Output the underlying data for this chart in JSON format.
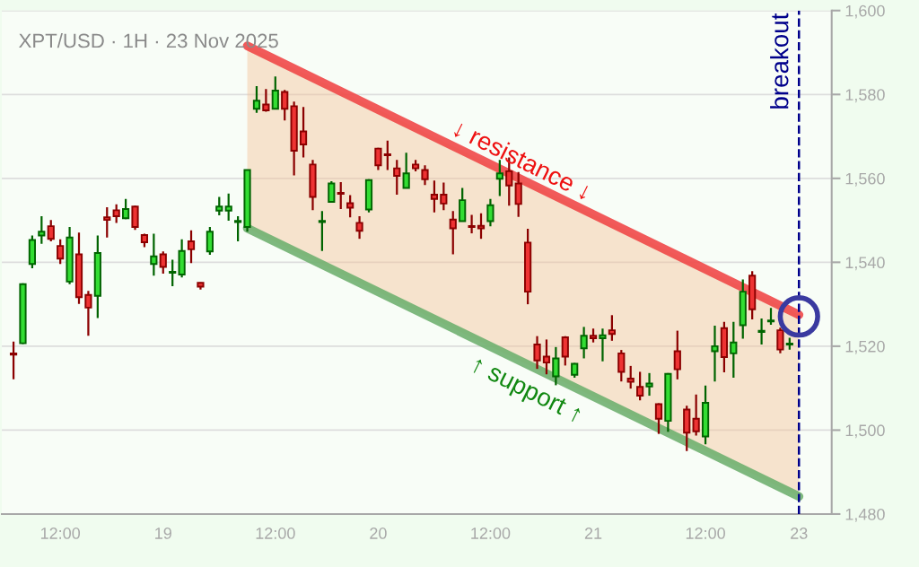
{
  "chart_data": {
    "type": "candlestick",
    "title": "XPT/USD · 1H · 23 Nov 2025",
    "categories": [
      null,
      null,
      null,
      null,
      null,
      "12:00",
      null,
      null,
      null,
      null,
      null,
      null,
      null,
      null,
      null,
      null,
      "19",
      null,
      null,
      null,
      null,
      null,
      null,
      null,
      null,
      null,
      null,
      null,
      "12:00",
      null,
      null,
      null,
      null,
      null,
      null,
      null,
      null,
      null,
      null,
      "20",
      null,
      null,
      null,
      null,
      null,
      null,
      null,
      null,
      null,
      null,
      null,
      "12:00",
      null,
      null,
      null,
      null,
      null,
      null,
      null,
      null,
      null,
      null,
      "21",
      null,
      null,
      null,
      null,
      null,
      null,
      null,
      null,
      null,
      null,
      null,
      "12:00",
      null,
      null,
      null,
      null,
      null,
      null,
      null,
      null,
      null,
      "23"
    ],
    "ohlc": [
      [
        1518.3,
        1521.1,
        1512.1,
        1518.0
      ],
      [
        1520.7,
        1535.0,
        1520.5,
        1534.8
      ],
      [
        1539.6,
        1546.4,
        1538.6,
        1545.3
      ],
      [
        1546.4,
        1551.0,
        1544.4,
        1547.3
      ],
      [
        1548.6,
        1550.1,
        1545.0,
        1545.6
      ],
      [
        1543.9,
        1545.5,
        1539.6,
        1540.9
      ],
      [
        1535.4,
        1548.4,
        1534.8,
        1545.9
      ],
      [
        1541.9,
        1547.1,
        1530.1,
        1531.7
      ],
      [
        1532.2,
        1533.2,
        1522.5,
        1529.2
      ],
      [
        1532.0,
        1546.4,
        1526.7,
        1542.2
      ],
      [
        1550.7,
        1553.1,
        1545.9,
        1550.1
      ],
      [
        1552.4,
        1553.8,
        1549.4,
        1551.0
      ],
      [
        1550.5,
        1555.1,
        1550.3,
        1552.7
      ],
      [
        1553.3,
        1553.5,
        1547.7,
        1548.4
      ],
      [
        1546.5,
        1546.8,
        1543.6,
        1544.8
      ],
      [
        1539.6,
        1546.8,
        1536.8,
        1541.4
      ],
      [
        1541.9,
        1542.6,
        1537.3,
        1538.9
      ],
      [
        1537.5,
        1540.6,
        1534.3,
        1537.6
      ],
      [
        1537.1,
        1545.5,
        1536.4,
        1542.7
      ],
      [
        1545.0,
        1547.6,
        1539.8,
        1543.1
      ],
      [
        1535.1,
        1535.2,
        1533.5,
        1534.2
      ],
      [
        1542.6,
        1548.4,
        1541.8,
        1547.3
      ],
      [
        1552.3,
        1555.6,
        1551.2,
        1553.3
      ],
      [
        1552.3,
        1556.4,
        1549.9,
        1553.3
      ],
      [
        1549.6,
        1551.0,
        1545.0,
        1549.7
      ],
      [
        1548.4,
        1562.0,
        1547.3,
        1562.0
      ],
      [
        1576.6,
        1582.0,
        1575.6,
        1578.5
      ],
      [
        1577.6,
        1581.3,
        1575.9,
        1576.2
      ],
      [
        1576.6,
        1584.3,
        1576.5,
        1580.9
      ],
      [
        1580.6,
        1581.1,
        1573.8,
        1576.6
      ],
      [
        1577.2,
        1578.3,
        1560.7,
        1566.6
      ],
      [
        1571.2,
        1577.0,
        1565.0,
        1568.1
      ],
      [
        1563.3,
        1564.4,
        1552.4,
        1555.6
      ],
      [
        1549.6,
        1552.2,
        1542.7,
        1549.8
      ],
      [
        1554.4,
        1559.3,
        1554.3,
        1558.8
      ],
      [
        1556.5,
        1559.1,
        1552.7,
        1556.3
      ],
      [
        1554.1,
        1556.0,
        1550.7,
        1553.0
      ],
      [
        1549.4,
        1551.0,
        1545.6,
        1547.5
      ],
      [
        1552.6,
        1559.8,
        1551.9,
        1559.6
      ],
      [
        1567.1,
        1567.3,
        1562.0,
        1563.1
      ],
      [
        1565.6,
        1569.0,
        1562.0,
        1565.5
      ],
      [
        1562.4,
        1564.4,
        1556.1,
        1560.6
      ],
      [
        1557.7,
        1566.1,
        1557.6,
        1561.2
      ],
      [
        1563.3,
        1564.4,
        1561.7,
        1562.4
      ],
      [
        1562.0,
        1563.1,
        1558.4,
        1559.8
      ],
      [
        1556.1,
        1559.5,
        1551.9,
        1555.1
      ],
      [
        1556.1,
        1559.0,
        1552.4,
        1554.0
      ],
      [
        1550.2,
        1552.2,
        1541.9,
        1548.1
      ],
      [
        1549.8,
        1557.7,
        1549.7,
        1554.8
      ],
      [
        1548.5,
        1551.3,
        1546.9,
        1548.4
      ],
      [
        1548.7,
        1551.7,
        1545.6,
        1548.1
      ],
      [
        1549.8,
        1555.1,
        1548.6,
        1553.6
      ],
      [
        1559.9,
        1564.4,
        1555.8,
        1561.2
      ],
      [
        1561.7,
        1565.0,
        1553.5,
        1558.3
      ],
      [
        1558.8,
        1561.5,
        1550.8,
        1553.9
      ],
      [
        1544.7,
        1548.0,
        1530.0,
        1533.0
      ],
      [
        1520.4,
        1522.4,
        1514.6,
        1516.6
      ],
      [
        1517.5,
        1521.6,
        1513.3,
        1516.1
      ],
      [
        1512.8,
        1519.8,
        1510.7,
        1517.1
      ],
      [
        1522.1,
        1522.4,
        1515.4,
        1517.5
      ],
      [
        1513.2,
        1516.0,
        1512.5,
        1515.8
      ],
      [
        1519.5,
        1524.6,
        1517.1,
        1522.5
      ],
      [
        1522.5,
        1524.2,
        1520.9,
        1521.9
      ],
      [
        1521.9,
        1524.2,
        1516.4,
        1522.6
      ],
      [
        1523.8,
        1527.4,
        1521.3,
        1522.9
      ],
      [
        1518.3,
        1519.1,
        1511.6,
        1513.9
      ],
      [
        1512.3,
        1515.3,
        1509.9,
        1511.5
      ],
      [
        1510.3,
        1513.9,
        1507.1,
        1508.2
      ],
      [
        1510.4,
        1513.6,
        1508.2,
        1511.1
      ],
      [
        1506.2,
        1506.4,
        1499.1,
        1502.7
      ],
      [
        1502.2,
        1513.6,
        1499.6,
        1513.4
      ],
      [
        1518.8,
        1523.7,
        1512.1,
        1514.5
      ],
      [
        1504.9,
        1505.8,
        1495.0,
        1499.4
      ],
      [
        1502.7,
        1508.5,
        1498.7,
        1499.7
      ],
      [
        1498.5,
        1510.6,
        1496.6,
        1506.5
      ],
      [
        1518.8,
        1524.9,
        1511.6,
        1520.0
      ],
      [
        1524.3,
        1525.8,
        1513.8,
        1517.4
      ],
      [
        1518.3,
        1525.8,
        1512.5,
        1520.9
      ],
      [
        1525.0,
        1535.9,
        1521.8,
        1533.0
      ],
      [
        1536.8,
        1537.9,
        1526.4,
        1528.8
      ],
      [
        1523.4,
        1526.6,
        1520.4,
        1523.5
      ],
      [
        1525.9,
        1529.1,
        1525.1,
        1526.0
      ],
      [
        1523.8,
        1524.4,
        1518.3,
        1519.2
      ],
      [
        1520.4,
        1522.0,
        1519.2,
        1520.6
      ],
      null
    ],
    "series": [
      {
        "type": "line",
        "color": "#f04848",
        "upper": [
          null,
          null,
          null,
          null,
          null,
          null,
          null,
          null,
          null,
          null,
          null,
          null,
          null,
          null,
          null,
          null,
          null,
          null,
          null,
          null,
          null,
          null,
          null,
          null,
          null,
          1591.6,
          null,
          null,
          null,
          null,
          null,
          null,
          null,
          null,
          null,
          null,
          null,
          null,
          null,
          null,
          null,
          null,
          null,
          null,
          null,
          null,
          null,
          null,
          null,
          null,
          null,
          null,
          null,
          null,
          null,
          null,
          null,
          null,
          null,
          null,
          null,
          null,
          null,
          null,
          null,
          null,
          null,
          null,
          null,
          null,
          null,
          null,
          null,
          null,
          null,
          null,
          null,
          null,
          null,
          null,
          null,
          null,
          null,
          null,
          1527.5
        ],
        "lower": [
          null,
          null,
          null,
          null,
          null,
          null,
          null,
          null,
          null,
          null,
          null,
          null,
          null,
          null,
          null,
          null,
          null,
          null,
          null,
          null,
          null,
          null,
          null,
          null,
          null,
          1548.1,
          null,
          null,
          null,
          null,
          null,
          null,
          null,
          null,
          null,
          null,
          null,
          null,
          null,
          null,
          null,
          null,
          null,
          null,
          null,
          null,
          null,
          null,
          null,
          null,
          null,
          null,
          null,
          null,
          null,
          null,
          null,
          null,
          null,
          null,
          null,
          null,
          null,
          null,
          null,
          null,
          null,
          null,
          null,
          null,
          null,
          null,
          null,
          null,
          null,
          null,
          null,
          null,
          null,
          null,
          null,
          null,
          null,
          null,
          1484.2
        ],
        "values": [
          null,
          null,
          null,
          null,
          null,
          null,
          null,
          null,
          null,
          null,
          null,
          null,
          null,
          null,
          null,
          null,
          null,
          null,
          null,
          null,
          null,
          null,
          null,
          null,
          null,
          1591.6,
          null,
          null,
          null,
          null,
          null,
          null,
          null,
          null,
          null,
          null,
          null,
          null,
          null,
          null,
          null,
          null,
          null,
          null,
          null,
          null,
          null,
          null,
          null,
          null,
          null,
          null,
          null,
          null,
          null,
          null,
          null,
          null,
          null,
          null,
          null,
          null,
          null,
          null,
          null,
          null,
          null,
          null,
          null,
          null,
          null,
          null,
          null,
          null,
          null,
          null,
          null,
          null,
          null,
          null,
          null,
          null,
          null,
          null,
          1527.5
        ]
      },
      {
        "type": "line",
        "color": "#70b070",
        "values": [
          null,
          null,
          null,
          null,
          null,
          null,
          null,
          null,
          null,
          null,
          null,
          null,
          null,
          null,
          null,
          null,
          null,
          null,
          null,
          null,
          null,
          null,
          null,
          null,
          null,
          1548.1,
          null,
          null,
          null,
          null,
          null,
          null,
          null,
          null,
          null,
          null,
          null,
          null,
          null,
          null,
          null,
          null,
          null,
          null,
          null,
          null,
          null,
          null,
          null,
          null,
          null,
          null,
          null,
          null,
          null,
          null,
          null,
          null,
          null,
          null,
          null,
          null,
          null,
          null,
          null,
          null,
          null,
          null,
          null,
          null,
          null,
          null,
          null,
          null,
          null,
          null,
          null,
          null,
          null,
          null,
          null,
          null,
          null,
          null,
          1484.2
        ]
      },
      {
        "type": "scatter",
        "x": [
          "23"
        ],
        "values": [
          1527.1
        ],
        "color": "#3a3aa0",
        "marker": "circle"
      }
    ],
    "ylim": [
      1480,
      1600
    ],
    "yticks": [
      {
        "value": 1480,
        "label": "1,480"
      },
      {
        "value": 1500,
        "label": "1,500"
      },
      {
        "value": 1520,
        "label": "1,520"
      },
      {
        "value": 1540,
        "label": "1,540"
      },
      {
        "value": 1560,
        "label": "1,560"
      },
      {
        "value": 1580,
        "label": "1,580"
      },
      {
        "value": 1600,
        "label": "1,600"
      }
    ],
    "grid": "y",
    "ref_lines": [
      {
        "axis": "x",
        "value": "23",
        "label": "breakout",
        "color": "#00008b",
        "line_style": "dashed"
      }
    ],
    "annotations": [
      "↓ resistance ↓",
      "↑ support ↑"
    ]
  }
}
